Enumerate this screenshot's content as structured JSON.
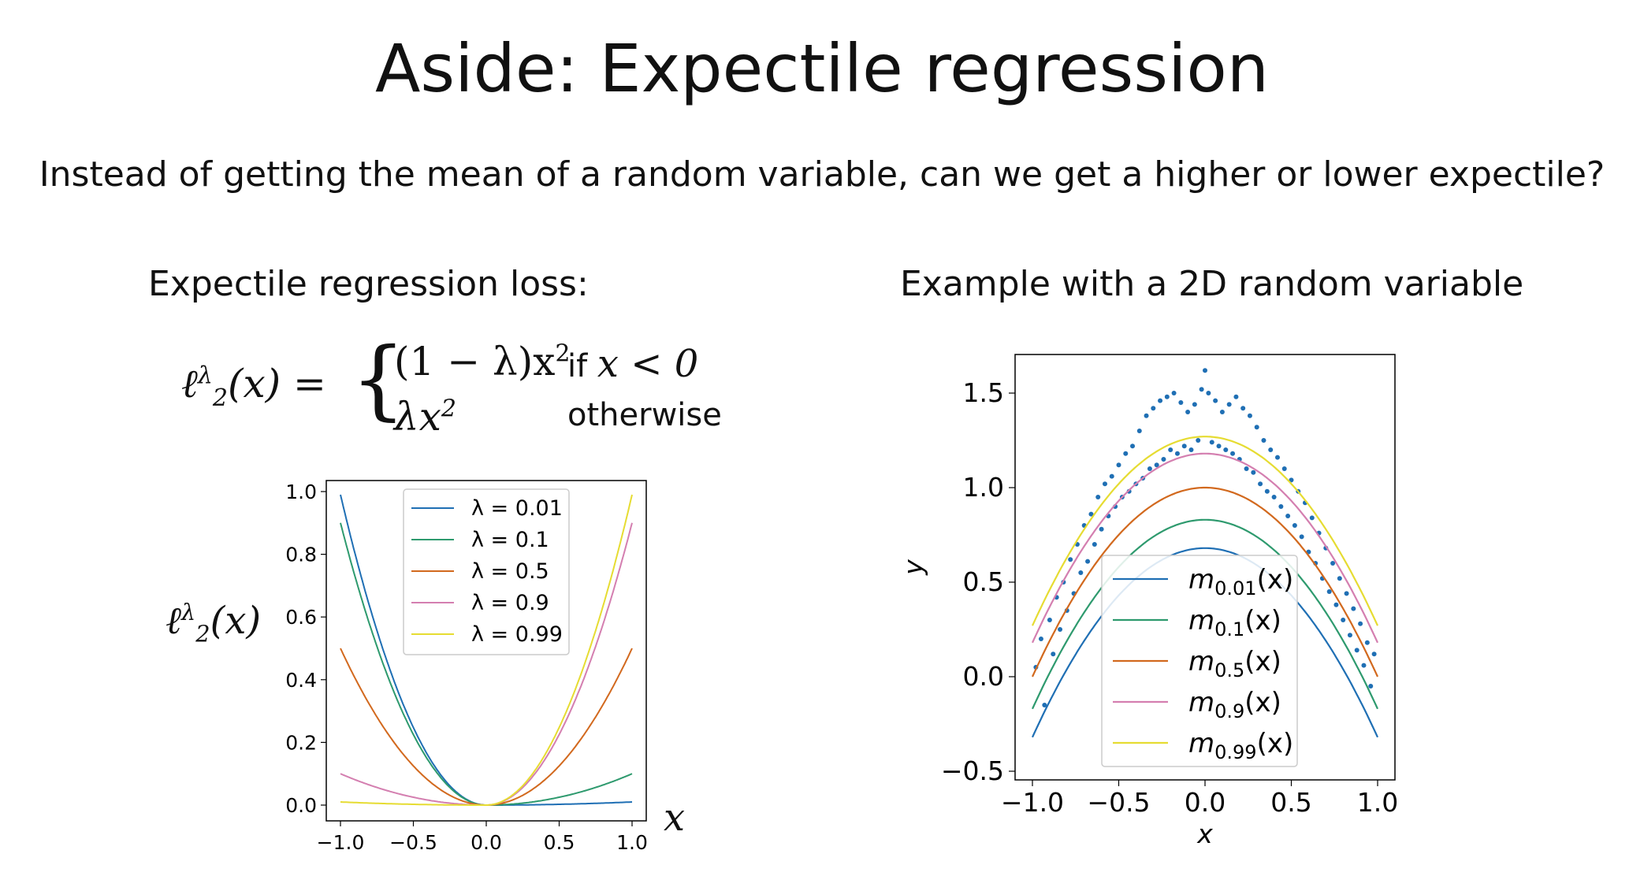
{
  "slide": {
    "title": "Aside: Expectile regression",
    "subtitle": "Instead of getting the mean of a random variable, can we get a higher or lower expectile?",
    "left_heading": "Expectile regression loss:",
    "right_heading": "Example with a 2D random variable",
    "formula": {
      "lhs": "ℓ",
      "lhs_sup": "λ",
      "lhs_sub": "2",
      "lhs_arg": "(x) =",
      "case1": "(1 − λ)x",
      "case1_sup": "2",
      "case2": "λx",
      "case2_sup": "2",
      "cond1_prefix": "if ",
      "cond1_expr": "x < 0",
      "cond2": "otherwise"
    },
    "left_ylabel": "ℓ",
    "left_ylabel_sup": "λ",
    "left_ylabel_sub": "2",
    "left_ylabel_arg": "(x)",
    "left_xlabel": "x"
  },
  "chart_data": [
    {
      "type": "line",
      "xlim": [
        -1.0,
        1.0
      ],
      "ylim": [
        0.0,
        1.0
      ],
      "xticks": [
        -1.0,
        -0.5,
        0.0,
        0.5,
        1.0
      ],
      "xtick_labels": [
        "−1.0",
        "−0.5",
        "0.0",
        "0.5",
        "1.0"
      ],
      "yticks": [
        0.0,
        0.2,
        0.4,
        0.6,
        0.8,
        1.0
      ],
      "ytick_labels": [
        "0.0",
        "0.2",
        "0.4",
        "0.6",
        "0.8",
        "1.0"
      ],
      "legend": "top-center",
      "function": "loss = (1 - lambda) * x^2 for x < 0, lambda * x^2 otherwise",
      "series": [
        {
          "name": "λ = 0.01",
          "lambda": 0.01,
          "color": "#1f6fb4"
        },
        {
          "name": "λ = 0.1",
          "lambda": 0.1,
          "color": "#2e9a6e"
        },
        {
          "name": "λ = 0.5",
          "lambda": 0.5,
          "color": "#d2691e"
        },
        {
          "name": "λ = 0.9",
          "lambda": 0.9,
          "color": "#d47fb0"
        },
        {
          "name": "λ = 0.99",
          "lambda": 0.99,
          "color": "#e6dc32"
        }
      ]
    },
    {
      "type": "scatter",
      "xlabel": "x",
      "ylabel": "y",
      "xlim": [
        -1.0,
        1.0
      ],
      "ylim": [
        -0.5,
        1.5
      ],
      "xticks": [
        -1.0,
        -0.5,
        0.0,
        0.5,
        1.0
      ],
      "xtick_labels": [
        "−1.0",
        "−0.5",
        "0.0",
        "0.5",
        "1.0"
      ],
      "yticks": [
        -0.5,
        0.0,
        0.5,
        1.0,
        1.5
      ],
      "ytick_labels": [
        "−0.5",
        "0.0",
        "0.5",
        "1.0",
        "1.5"
      ],
      "legend": "lower-center",
      "scatter": {
        "color": "#1f6fb4",
        "x": [
          -0.98,
          -0.95,
          -0.93,
          -0.9,
          -0.88,
          -0.86,
          -0.84,
          -0.82,
          -0.8,
          -0.78,
          -0.76,
          -0.74,
          -0.72,
          -0.7,
          -0.68,
          -0.66,
          -0.64,
          -0.62,
          -0.6,
          -0.58,
          -0.56,
          -0.54,
          -0.52,
          -0.5,
          -0.48,
          -0.46,
          -0.44,
          -0.42,
          -0.4,
          -0.38,
          -0.36,
          -0.34,
          -0.32,
          -0.3,
          -0.28,
          -0.26,
          -0.24,
          -0.22,
          -0.2,
          -0.18,
          -0.16,
          -0.14,
          -0.12,
          -0.1,
          -0.08,
          -0.06,
          -0.04,
          -0.02,
          0.0,
          0.02,
          0.04,
          0.06,
          0.08,
          0.1,
          0.12,
          0.14,
          0.16,
          0.18,
          0.2,
          0.22,
          0.24,
          0.26,
          0.28,
          0.3,
          0.32,
          0.34,
          0.36,
          0.38,
          0.4,
          0.42,
          0.44,
          0.46,
          0.48,
          0.5,
          0.52,
          0.54,
          0.56,
          0.58,
          0.6,
          0.62,
          0.64,
          0.66,
          0.68,
          0.7,
          0.72,
          0.74,
          0.76,
          0.78,
          0.8,
          0.82,
          0.84,
          0.86,
          0.88,
          0.9,
          0.92,
          0.94,
          0.96,
          0.98
        ],
        "y": [
          0.05,
          0.2,
          -0.15,
          0.3,
          0.12,
          0.42,
          0.25,
          0.5,
          0.35,
          0.62,
          0.44,
          0.7,
          0.55,
          0.8,
          0.61,
          0.86,
          0.7,
          0.95,
          0.78,
          1.02,
          0.85,
          1.06,
          0.9,
          1.12,
          0.95,
          1.18,
          0.98,
          1.22,
          1.02,
          1.3,
          1.05,
          1.38,
          1.1,
          1.42,
          1.12,
          1.46,
          1.15,
          1.48,
          1.2,
          1.5,
          1.18,
          1.45,
          1.22,
          1.4,
          1.2,
          1.44,
          1.25,
          1.52,
          1.62,
          1.5,
          1.24,
          1.46,
          1.22,
          1.4,
          1.2,
          1.44,
          1.18,
          1.48,
          1.15,
          1.42,
          1.1,
          1.38,
          1.08,
          1.32,
          1.02,
          1.25,
          0.98,
          1.2,
          0.95,
          1.16,
          0.9,
          1.1,
          0.85,
          1.04,
          0.8,
          0.98,
          0.74,
          0.92,
          0.66,
          0.84,
          0.6,
          0.76,
          0.52,
          0.68,
          0.45,
          0.6,
          0.38,
          0.52,
          0.3,
          0.44,
          0.22,
          0.36,
          0.14,
          0.28,
          0.06,
          0.18,
          -0.05,
          0.12
        ]
      },
      "curve_model": "m_tau(x) = a_tau - x^2 with intercept a per expectile",
      "series": [
        {
          "name": "m",
          "sub": "0.01",
          "arg": "(x)",
          "intercept": 0.68,
          "color": "#1f6fb4"
        },
        {
          "name": "m",
          "sub": "0.1",
          "arg": "(x)",
          "intercept": 0.83,
          "color": "#2e9a6e"
        },
        {
          "name": "m",
          "sub": "0.5",
          "arg": "(x)",
          "intercept": 1.0,
          "color": "#d2691e"
        },
        {
          "name": "m",
          "sub": "0.9",
          "arg": "(x)",
          "intercept": 1.18,
          "color": "#d47fb0"
        },
        {
          "name": "m",
          "sub": "0.99",
          "arg": "(x)",
          "intercept": 1.27,
          "color": "#e6dc32"
        }
      ]
    }
  ]
}
